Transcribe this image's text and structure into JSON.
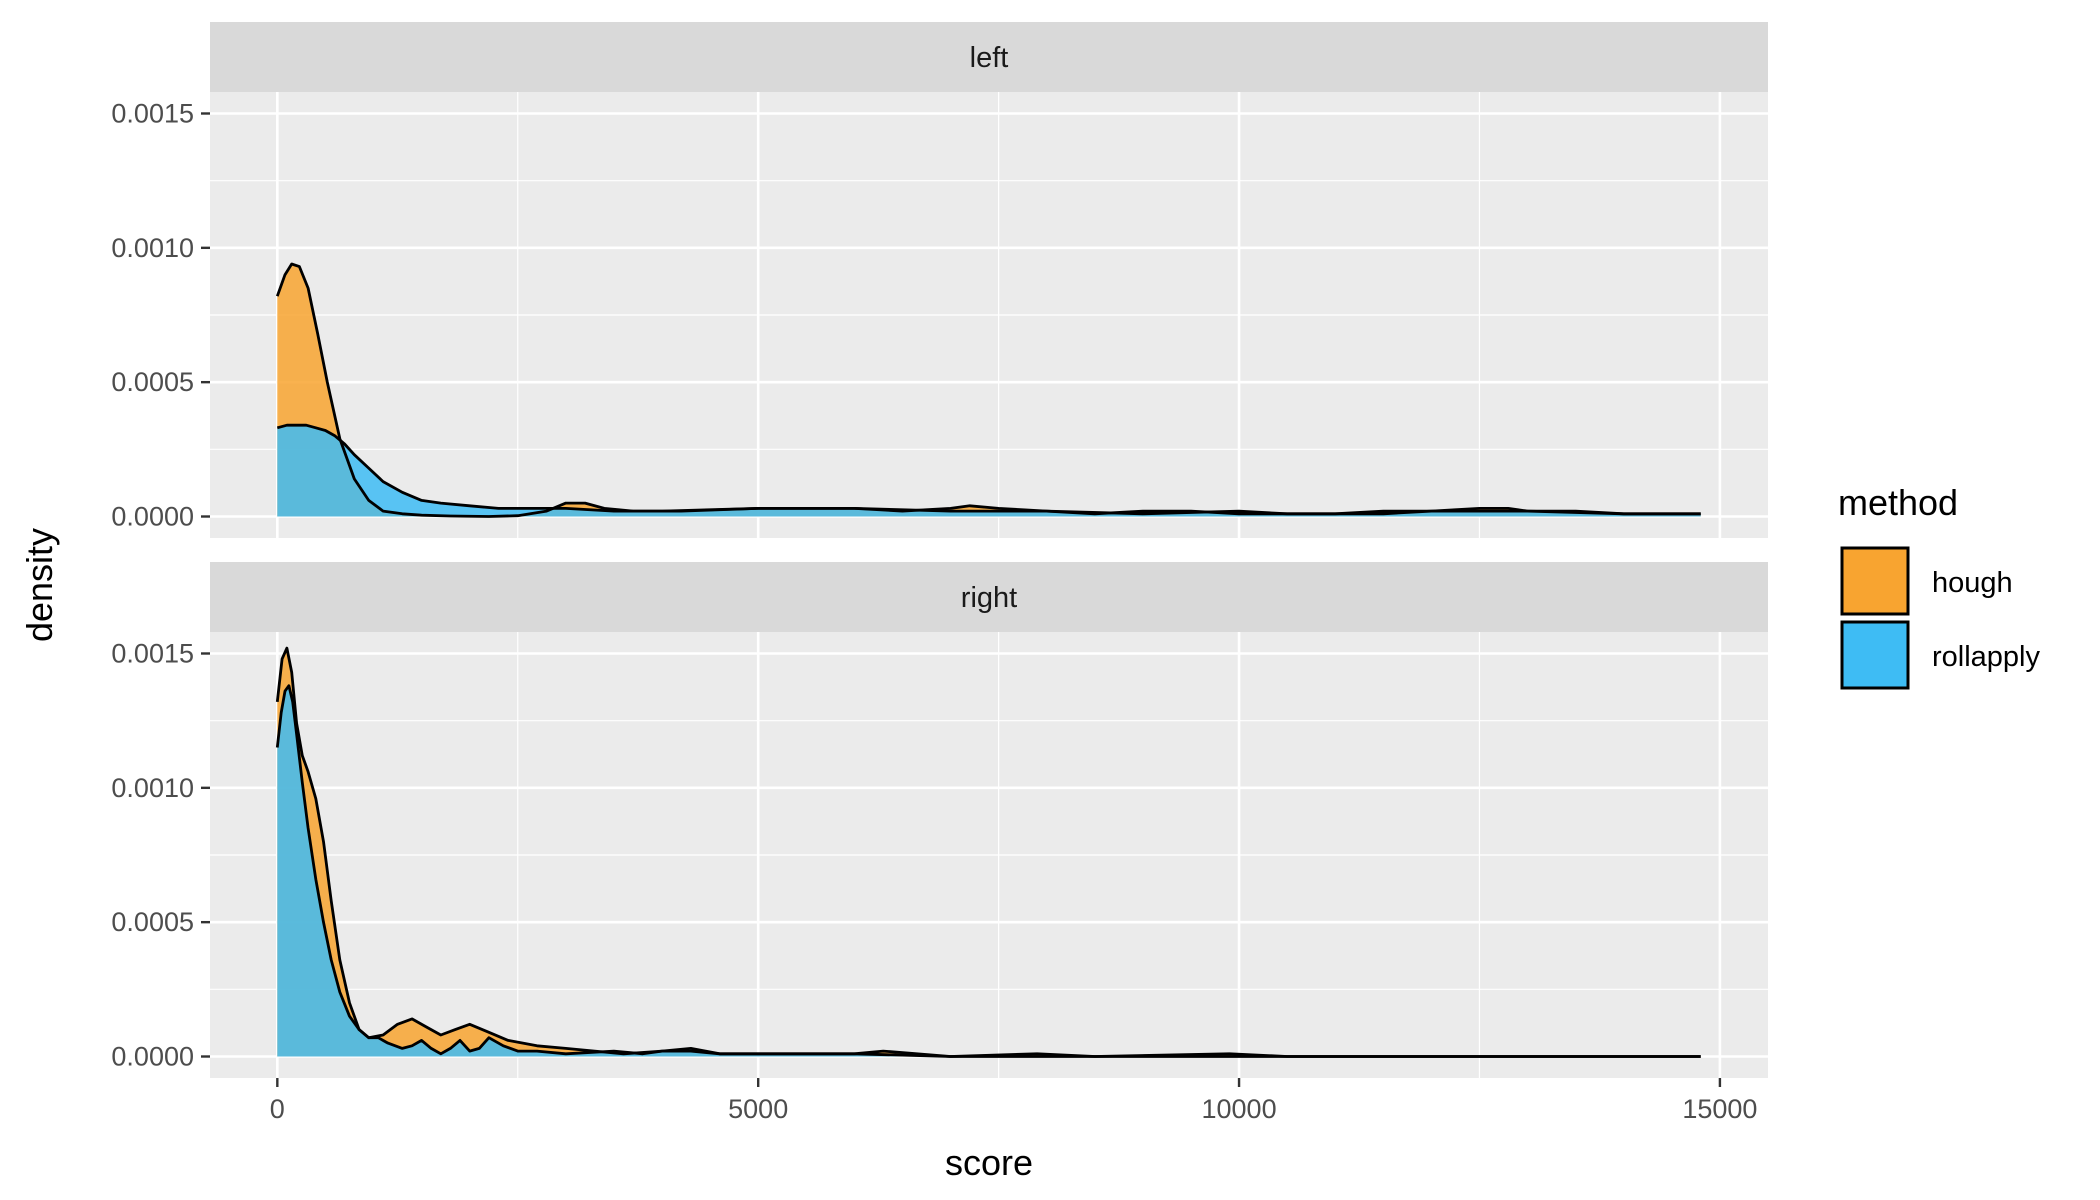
{
  "chart_data": {
    "type": "area",
    "subtype": "density",
    "xlabel": "score",
    "ylabel": "density",
    "xlim": [
      -700,
      15500
    ],
    "ylim": [
      -8e-05,
      0.00158
    ],
    "x_ticks": [
      0,
      5000,
      10000,
      15000
    ],
    "x_tick_labels": [
      "0",
      "5000",
      "10000",
      "15000"
    ],
    "y_ticks": [
      0,
      0.0005,
      0.001,
      0.0015
    ],
    "y_tick_labels": [
      "0.0000",
      "0.0005",
      "0.0010",
      "0.0015"
    ],
    "grid": true,
    "legend": {
      "title": "method",
      "position": "right",
      "entries": [
        {
          "label": "hough",
          "color": "#f8a430"
        },
        {
          "label": "rollapply",
          "color": "#3ebcf4"
        }
      ]
    },
    "series_colors": {
      "hough": "#f8a430",
      "rollapply": "#3ebcf4"
    },
    "panels": [
      {
        "strip": "left",
        "series": [
          {
            "name": "hough",
            "x": [
              0,
              80,
              150,
              230,
              320,
              420,
              520,
              650,
              800,
              950,
              1100,
              1300,
              1500,
              1800,
              2200,
              2500,
              2800,
              3000,
              3200,
              3400,
              3700,
              4200,
              5000,
              5500,
              6000,
              6500,
              7000,
              7200,
              7500,
              8000,
              8500,
              9000,
              9500,
              10000,
              11000,
              11500,
              12000,
              12500,
              12800,
              13000,
              13500,
              14000,
              14800
            ],
            "y": [
              0.00082,
              0.0009,
              0.00094,
              0.00093,
              0.00085,
              0.00068,
              0.0005,
              0.00029,
              0.00014,
              6e-05,
              2e-05,
              1e-05,
              5e-06,
              2e-06,
              0.0,
              3e-06,
              2e-05,
              5e-05,
              5e-05,
              3e-05,
              2e-05,
              2e-05,
              3e-05,
              3e-05,
              3e-05,
              2e-05,
              3e-05,
              4e-05,
              3e-05,
              2e-05,
              1e-05,
              2e-05,
              2e-05,
              1e-05,
              1e-05,
              1e-05,
              2e-05,
              3e-05,
              3e-05,
              2e-05,
              2e-05,
              1e-05,
              1e-05
            ]
          },
          {
            "name": "rollapply",
            "x": [
              0,
              100,
              200,
              300,
              400,
              500,
              600,
              700,
              800,
              950,
              1100,
              1300,
              1500,
              1700,
              2000,
              2300,
              2600,
              3000,
              3500,
              4000,
              5000,
              6000,
              7000,
              8000,
              9000,
              10000,
              10500,
              11000,
              11500,
              12000,
              13000,
              14000,
              14800
            ],
            "y": [
              0.00033,
              0.00034,
              0.00034,
              0.00034,
              0.00033,
              0.00032,
              0.0003,
              0.00027,
              0.00023,
              0.00018,
              0.00013,
              9e-05,
              6e-05,
              5e-05,
              4e-05,
              3e-05,
              3e-05,
              3e-05,
              2e-05,
              2e-05,
              3e-05,
              3e-05,
              2e-05,
              2e-05,
              1e-05,
              2e-05,
              1e-05,
              1e-05,
              2e-05,
              2e-05,
              2e-05,
              1e-05,
              1e-05
            ]
          }
        ]
      },
      {
        "strip": "right",
        "series": [
          {
            "name": "hough",
            "x": [
              0,
              50,
              100,
              150,
              200,
              260,
              320,
              400,
              480,
              560,
              650,
              750,
              850,
              950,
              1100,
              1250,
              1400,
              1550,
              1700,
              1850,
              2000,
              2200,
              2400,
              2700,
              3000,
              3300,
              3600,
              4000,
              4300,
              4600,
              5200,
              6000,
              6300,
              7000,
              7900,
              8500,
              9900,
              10500,
              11500,
              12500,
              14800
            ],
            "y": [
              0.00132,
              0.00148,
              0.00152,
              0.00143,
              0.00124,
              0.00112,
              0.00106,
              0.00096,
              0.0008,
              0.00058,
              0.00036,
              0.0002,
              0.0001,
              7e-05,
              8e-05,
              0.00012,
              0.00014,
              0.00011,
              8e-05,
              0.0001,
              0.00012,
              9e-05,
              6e-05,
              4e-05,
              3e-05,
              2e-05,
              1e-05,
              2e-05,
              2e-05,
              1e-05,
              1e-05,
              1e-05,
              2e-05,
              0.0,
              1e-05,
              0.0,
              1e-05,
              0.0,
              0.0,
              0.0,
              0.0
            ]
          },
          {
            "name": "rollapply",
            "x": [
              0,
              40,
              80,
              120,
              160,
              200,
              260,
              320,
              400,
              480,
              560,
              650,
              750,
              850,
              950,
              1050,
              1150,
              1300,
              1400,
              1500,
              1600,
              1700,
              1800,
              1900,
              2000,
              2100,
              2200,
              2350,
              2500,
              2700,
              3000,
              3500,
              3800,
              4000,
              4300,
              4600,
              5000,
              6000,
              7000,
              8000,
              10000,
              12000,
              14800
            ],
            "y": [
              0.00115,
              0.00128,
              0.00136,
              0.00138,
              0.00132,
              0.0012,
              0.00102,
              0.00085,
              0.00066,
              0.0005,
              0.00036,
              0.00024,
              0.00015,
              0.0001,
              7e-05,
              7e-05,
              5e-05,
              3e-05,
              4e-05,
              6e-05,
              3e-05,
              1e-05,
              3e-05,
              6e-05,
              2e-05,
              3e-05,
              7e-05,
              4e-05,
              2e-05,
              2e-05,
              1e-05,
              2e-05,
              1e-05,
              2e-05,
              3e-05,
              1e-05,
              1e-05,
              1e-05,
              0.0,
              0.0,
              0.0,
              0.0,
              0.0
            ]
          }
        ]
      }
    ]
  }
}
